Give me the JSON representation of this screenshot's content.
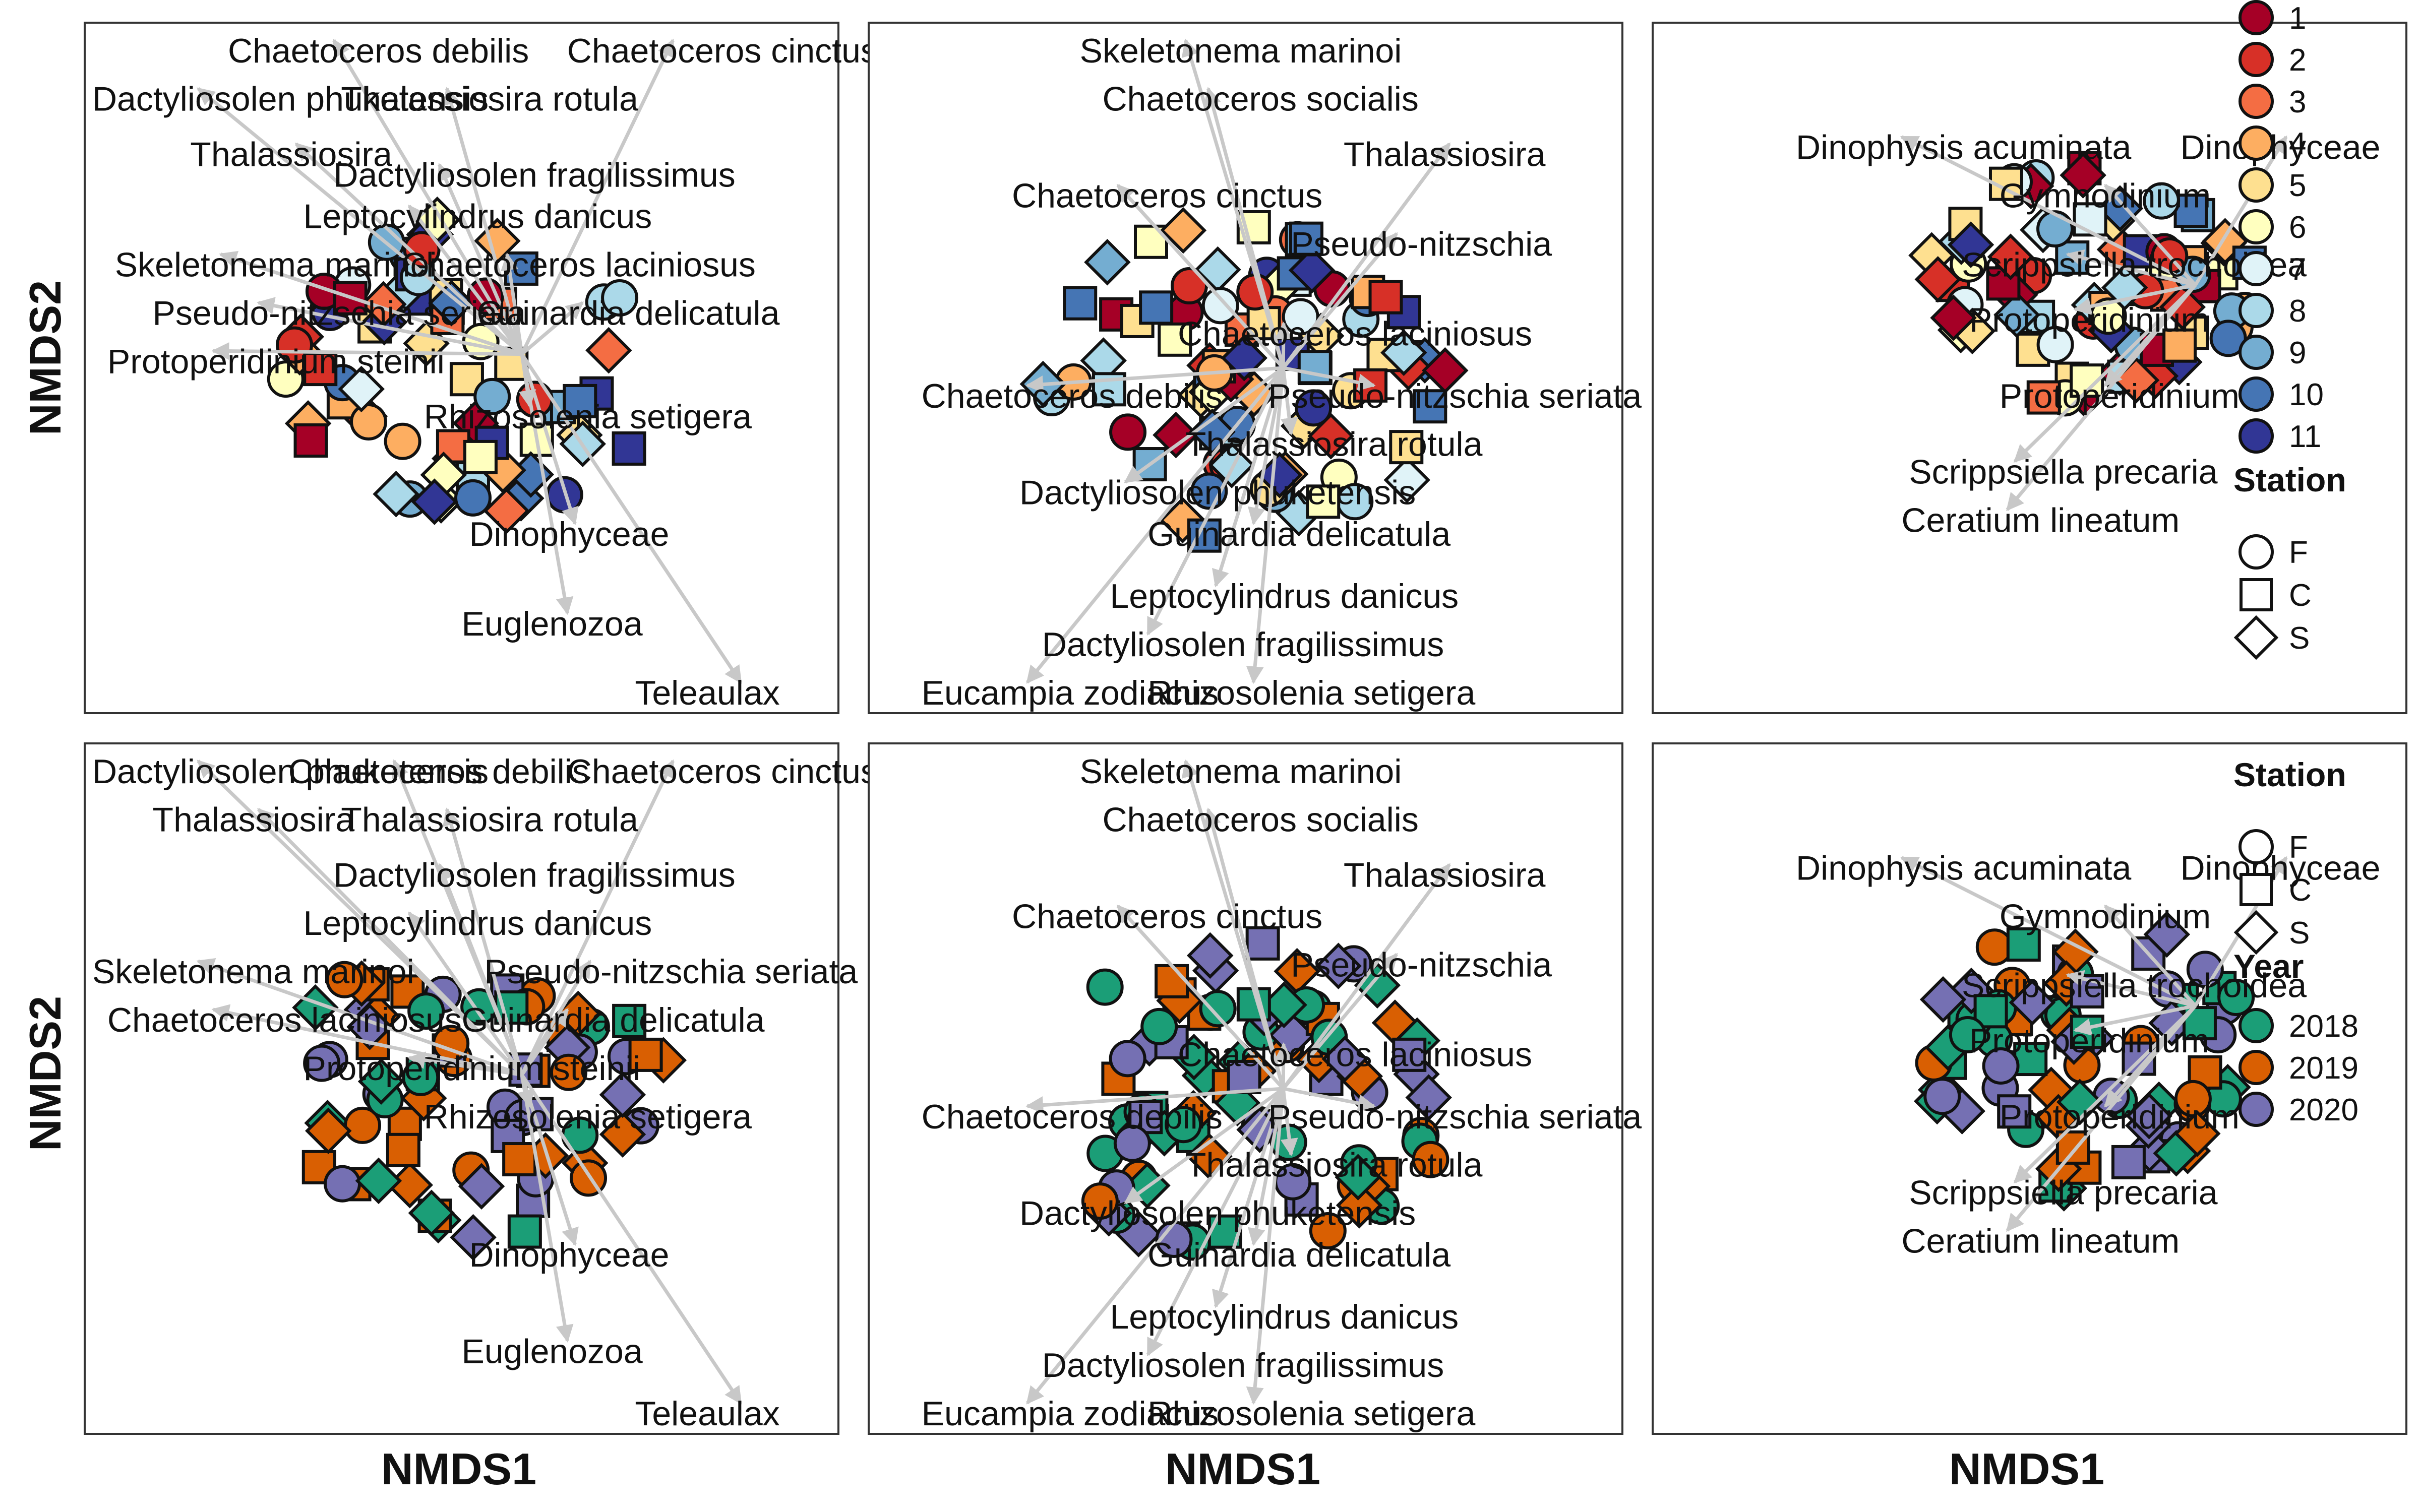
{
  "axes": {
    "x_title": "NMDS1",
    "y_title": "NMDS2"
  },
  "colors": {
    "month": [
      "#a50026",
      "#d73027",
      "#f46d43",
      "#fdae61",
      "#fee090",
      "#ffffbf",
      "#e0f3f8",
      "#abd9e9",
      "#74add1",
      "#4575b4",
      "#313695"
    ],
    "year": {
      "2018": "#1b9e77",
      "2019": "#d95f02",
      "2020": "#7570b3"
    },
    "arrow": "#c8c8c8"
  },
  "legend_month": {
    "labels": [
      "1",
      "2",
      "3",
      "4",
      "5",
      "6",
      "7",
      "8",
      "9",
      "10",
      "11"
    ]
  },
  "legend_station": {
    "title": "Station",
    "labels": [
      "F",
      "C",
      "S"
    ]
  },
  "legend_year": {
    "title": "Year",
    "labels": [
      "2018",
      "2019",
      "2020"
    ]
  },
  "chart_data": {
    "type": "scatter",
    "panels": [
      {
        "id": "top-left",
        "color_by": "month",
        "labels": [
          "Chaetoceros debilis",
          "Chaetoceros cinctus",
          "Dactyliosolen phuketensis",
          "Thalassiosira rotula",
          "Thalassiosira",
          "Dactyliosolen fragilissimus",
          "Leptocylindrus danicus",
          "Chaetoceros laciniosus",
          "Skeletonema marinoi",
          "Pseudo-nitzschia seriata",
          "Guinardia delicatula",
          "Protoperidinium steinii",
          "Rhizosolenia setigera",
          "Dinophyceae",
          "Euglenozoa",
          "Teleaulax"
        ]
      },
      {
        "id": "top-middle",
        "color_by": "month",
        "labels": [
          "Skeletonema marinoi",
          "Chaetoceros socialis",
          "Thalassiosira",
          "Chaetoceros cinctus",
          "Pseudo-nitzschia",
          "Chaetoceros laciniosus",
          "Chaetoceros debilis",
          "Pseudo-nitzschia seriata",
          "Thalassiosira rotula",
          "Dactyliosolen phuketensis",
          "Guinardia delicatula",
          "Leptocylindrus danicus",
          "Dactyliosolen fragilissimus",
          "Eucampia zodiacus",
          "Rhizosolenia setigera"
        ]
      },
      {
        "id": "top-right",
        "color_by": "month",
        "labels": [
          "Dinophysis acuminata",
          "Dinophyceae",
          "Gymnodinium",
          "Scrippsiella trochoidea",
          "Protoperidinium",
          "Protoperidinium",
          "Scrippsiella precaria",
          "Ceratium lineatum"
        ]
      },
      {
        "id": "bottom-left",
        "color_by": "year",
        "labels": [
          "Dactyliosolen phuketensis",
          "Chaetoceros debilis",
          "Chaetoceros cinctus",
          "Thalassiosira",
          "Thalassiosira rotula",
          "Dactyliosolen fragilissimus",
          "Leptocylindrus danicus",
          "Skeletonema marinoi",
          "Pseudo-nitzschia seriata",
          "Chaetoceros laciniosus",
          "Guinardia delicatula",
          "Protoperidinium steinii",
          "Rhizosolenia setigera",
          "Dinophyceae",
          "Euglenozoa",
          "Teleaulax"
        ]
      },
      {
        "id": "bottom-middle",
        "color_by": "year",
        "labels": [
          "Skeletonema marinoi",
          "Chaetoceros socialis",
          "Thalassiosira",
          "Chaetoceros cinctus",
          "Pseudo-nitzschia",
          "Chaetoceros laciniosus",
          "Chaetoceros debilis",
          "Pseudo-nitzschia seriata",
          "Thalassiosira rotula",
          "Dactyliosolen phuketensis",
          "Guinardia delicatula",
          "Leptocylindrus danicus",
          "Dactyliosolen fragilissimus",
          "Eucampia zodiacus",
          "Rhizosolenia setigera"
        ]
      },
      {
        "id": "bottom-right",
        "color_by": "year",
        "labels": [
          "Dinophysis acuminata",
          "Dinophyceae",
          "Gymnodinium",
          "Scrippsiella trochoidea",
          "Protoperidinium",
          "Protoperidinium",
          "Scrippsiella precaria",
          "Ceratium lineatum"
        ]
      }
    ]
  }
}
